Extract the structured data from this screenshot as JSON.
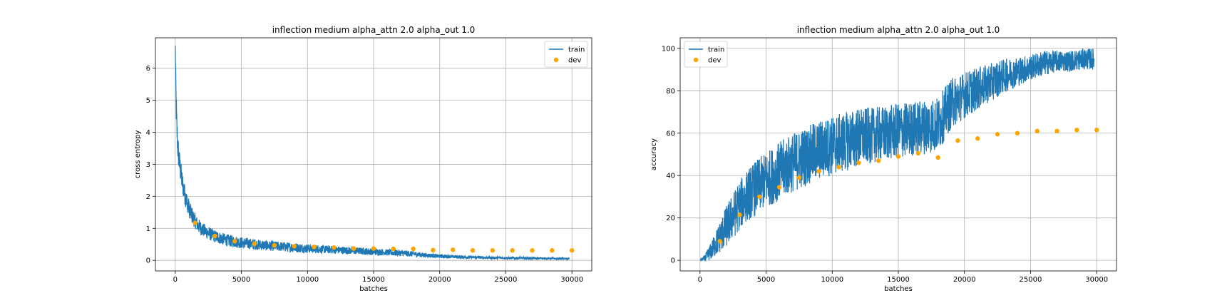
{
  "chart_data": [
    {
      "type": "line",
      "title": "inflection medium alpha_attn 2.0 alpha_out 1.0",
      "xlabel": "batches",
      "ylabel": "cross entropy",
      "xlim": [
        -1500,
        31500
      ],
      "ylim": [
        -0.33,
        6.95
      ],
      "xticks": [
        0,
        5000,
        10000,
        15000,
        20000,
        25000,
        30000
      ],
      "yticks": [
        0,
        1,
        2,
        3,
        4,
        5,
        6
      ],
      "grid": true,
      "legend": "upper right",
      "series": [
        {
          "name": "train",
          "style": "line",
          "color": "#1f77b4",
          "x": [
            0,
            60,
            120,
            200,
            300,
            400,
            500,
            700,
            900,
            1100,
            1400,
            1700,
            2000,
            2500,
            3000,
            3500,
            4000,
            5000,
            6000,
            7000,
            8000,
            9000,
            10000,
            11000,
            12000,
            13000,
            14000,
            15000,
            16000,
            17000,
            18000,
            19000,
            20000,
            22000,
            24000,
            26000,
            28000,
            29800
          ],
          "values": [
            6.7,
            5.0,
            4.1,
            3.5,
            3.1,
            2.8,
            2.5,
            2.1,
            1.8,
            1.55,
            1.3,
            1.1,
            0.98,
            0.85,
            0.75,
            0.68,
            0.62,
            0.55,
            0.5,
            0.46,
            0.43,
            0.4,
            0.37,
            0.35,
            0.33,
            0.31,
            0.29,
            0.27,
            0.25,
            0.23,
            0.2,
            0.16,
            0.13,
            0.1,
            0.08,
            0.07,
            0.06,
            0.05
          ],
          "noise": [
            0.0,
            0.6,
            0.5,
            0.45,
            0.4,
            0.38,
            0.35,
            0.33,
            0.3,
            0.28,
            0.25,
            0.23,
            0.22,
            0.2,
            0.2,
            0.19,
            0.19,
            0.18,
            0.17,
            0.16,
            0.15,
            0.15,
            0.14,
            0.13,
            0.12,
            0.12,
            0.11,
            0.11,
            0.1,
            0.1,
            0.09,
            0.07,
            0.06,
            0.05,
            0.04,
            0.04,
            0.03,
            0.03
          ]
        },
        {
          "name": "dev",
          "style": "scatter",
          "color": "#ffa500",
          "x": [
            1500,
            3000,
            4500,
            6000,
            7500,
            9000,
            10500,
            12000,
            13500,
            15000,
            16500,
            18000,
            19500,
            21000,
            22500,
            24000,
            25500,
            27000,
            28500,
            30000
          ],
          "values": [
            1.17,
            0.76,
            0.6,
            0.52,
            0.47,
            0.44,
            0.42,
            0.4,
            0.37,
            0.37,
            0.36,
            0.36,
            0.32,
            0.33,
            0.31,
            0.31,
            0.31,
            0.31,
            0.31,
            0.31
          ]
        }
      ]
    },
    {
      "type": "line",
      "title": "inflection medium alpha_attn 2.0 alpha_out 1.0",
      "xlabel": "batches",
      "ylabel": "accuracy",
      "xlim": [
        -1500,
        31500
      ],
      "ylim": [
        -5,
        105
      ],
      "xticks": [
        0,
        5000,
        10000,
        15000,
        20000,
        25000,
        30000
      ],
      "yticks": [
        0,
        20,
        40,
        60,
        80,
        100
      ],
      "grid": true,
      "legend": "upper left",
      "series": [
        {
          "name": "train",
          "style": "line",
          "color": "#1f77b4",
          "x": [
            0,
            400,
            800,
            1200,
            1600,
            2000,
            2500,
            3000,
            3500,
            4000,
            5000,
            6000,
            7000,
            8000,
            9000,
            10000,
            11000,
            12000,
            13000,
            14000,
            15000,
            16000,
            17000,
            18000,
            19000,
            20000,
            21000,
            22000,
            23000,
            24000,
            25000,
            26000,
            27000,
            28000,
            29000,
            29800
          ],
          "values": [
            0,
            1,
            4,
            8,
            12,
            16,
            21,
            26,
            30,
            33,
            38,
            42,
            46,
            49,
            52,
            54,
            56,
            58,
            59,
            60,
            61,
            62,
            63,
            64,
            74,
            78,
            81,
            84,
            87,
            89,
            91,
            93,
            94,
            94,
            95,
            95
          ],
          "noise": [
            0,
            2,
            4,
            6,
            8,
            10,
            11,
            12,
            12,
            13,
            13,
            14,
            14,
            14,
            14,
            14,
            14,
            14,
            13,
            13,
            13,
            13,
            13,
            13,
            12,
            11,
            10,
            9,
            8,
            7,
            6,
            6,
            5,
            5,
            5,
            5
          ]
        },
        {
          "name": "dev",
          "style": "scatter",
          "color": "#ffa500",
          "x": [
            1500,
            3000,
            4500,
            6000,
            7500,
            9000,
            10500,
            12000,
            13500,
            15000,
            16500,
            18000,
            19500,
            21000,
            22500,
            24000,
            25500,
            27000,
            28500,
            30000
          ],
          "values": [
            9,
            21.5,
            30,
            34.5,
            39,
            42,
            44,
            46,
            47,
            49,
            50.5,
            48.5,
            56.5,
            57.5,
            59.5,
            60,
            61,
            61,
            61.5,
            61.5
          ]
        }
      ]
    }
  ]
}
